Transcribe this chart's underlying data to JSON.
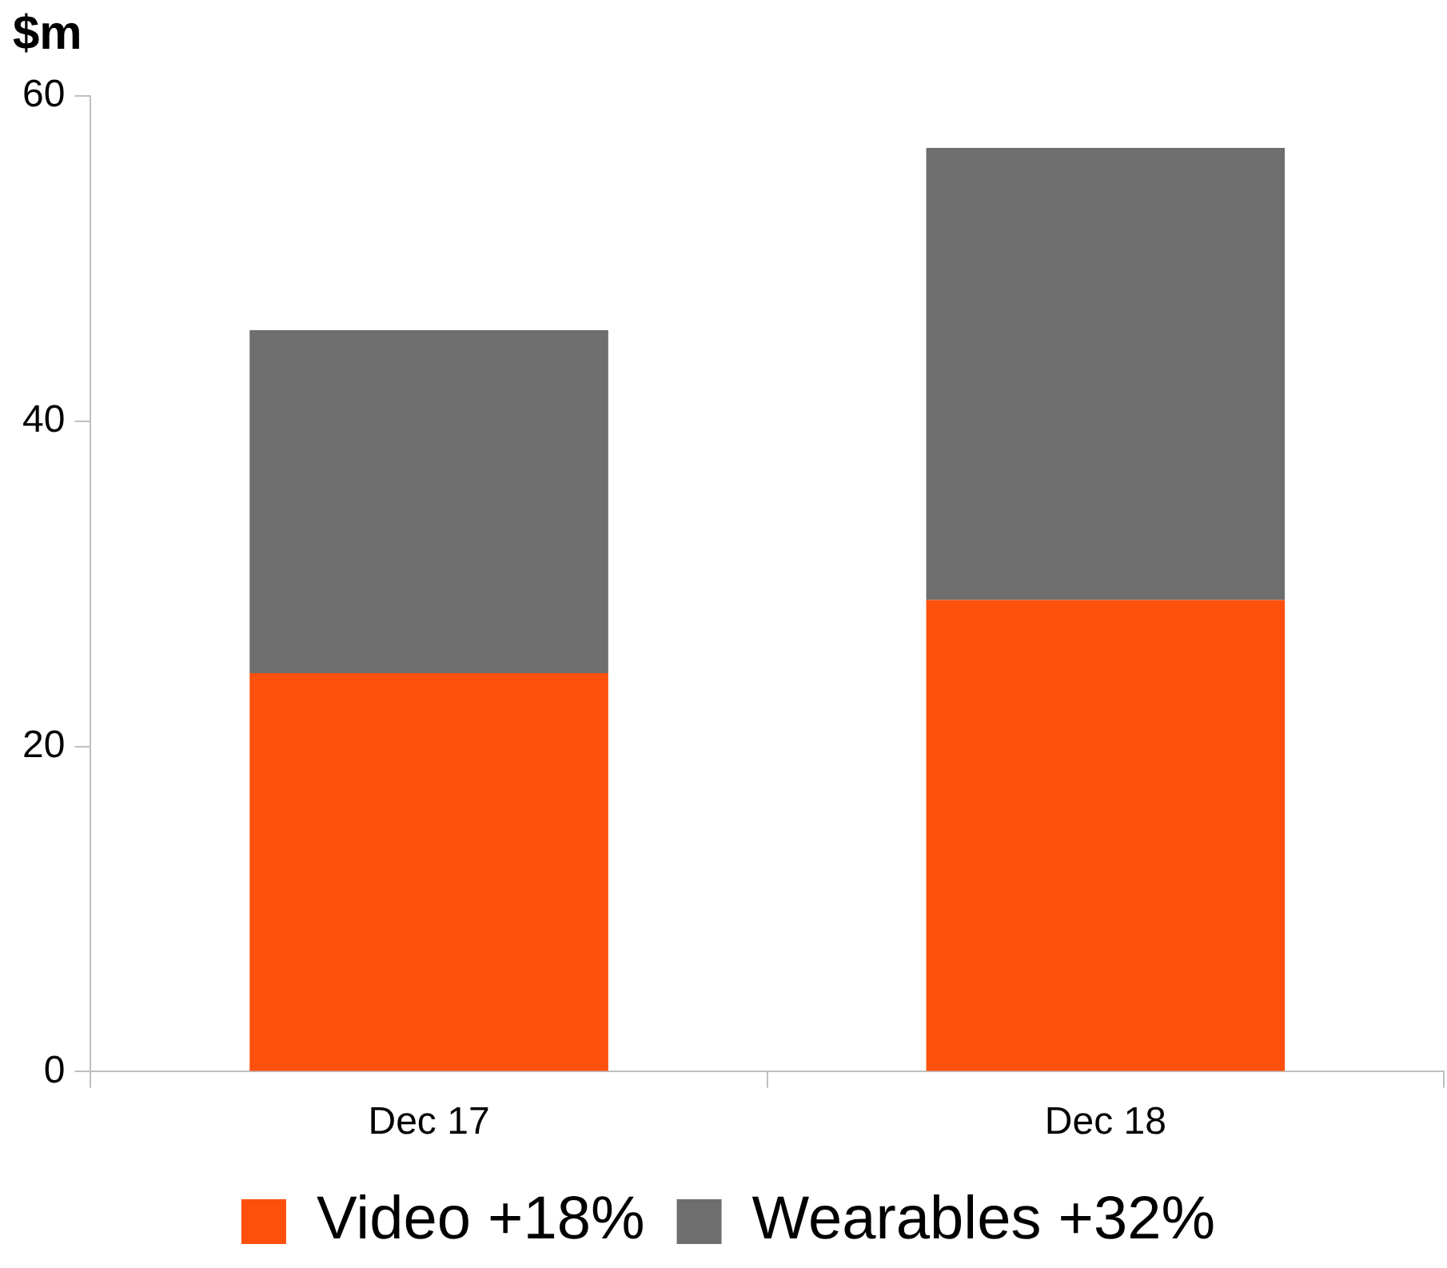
{
  "chart_data": {
    "type": "bar",
    "ylabel": "$m",
    "categories": [
      "Dec 17",
      "Dec 18"
    ],
    "series": [
      {
        "name": "Video +18%",
        "color": "#fc500c",
        "values": [
          24.5,
          29.0
        ]
      },
      {
        "name": "Wearables +32%",
        "color": "#6e6e6e",
        "values": [
          21.1,
          27.8
        ]
      }
    ],
    "stacked": true,
    "ylim": [
      0,
      60
    ],
    "yticks": [
      0,
      20,
      40,
      60
    ],
    "grid": false,
    "legend": "bottom"
  }
}
